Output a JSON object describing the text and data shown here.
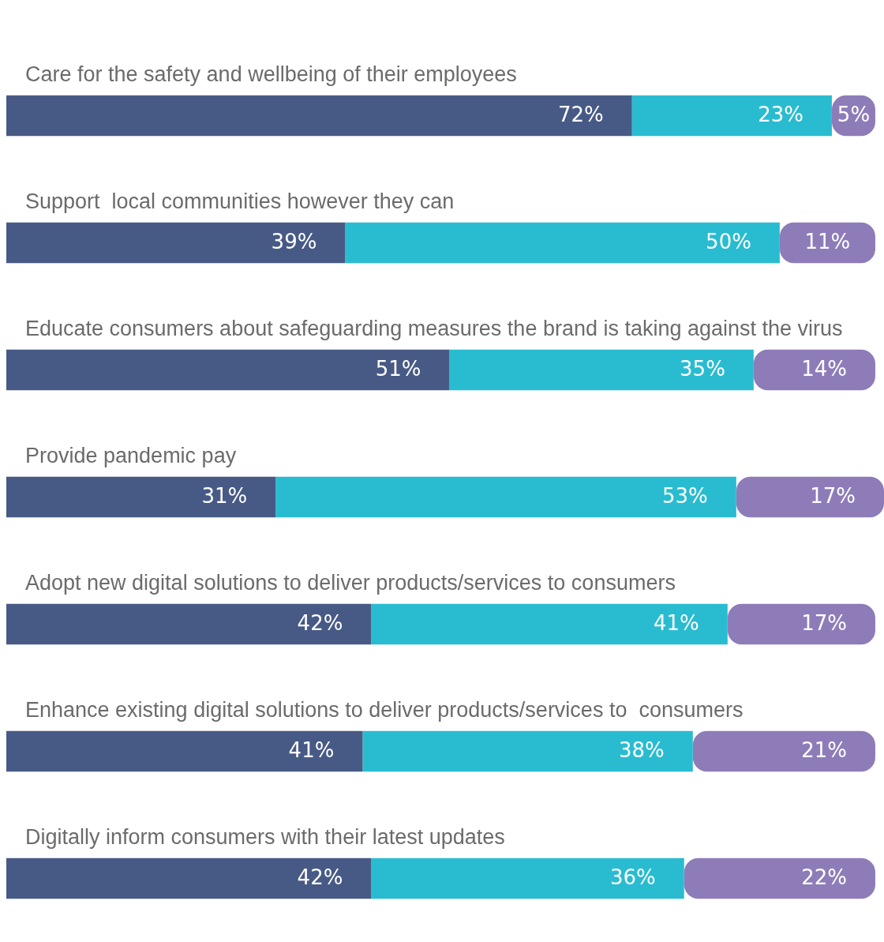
{
  "chart_data": {
    "type": "bar",
    "orientation": "horizontal",
    "stacked": true,
    "tick_labels": false,
    "categories": [
      "Care for the safety and wellbeing of their employees",
      "Support  local communities however they can",
      "Educate consumers about safeguarding measures the brand is taking against the virus",
      "Provide pandemic pay",
      "Adopt new digital solutions to deliver products/services to consumers",
      "Enhance existing digital solutions to deliver products/services to  consumers",
      "Digitally inform consumers with their latest updates"
    ],
    "series": [
      {
        "color": "#475a85",
        "values": [
          72,
          39,
          51,
          31,
          42,
          41,
          42
        ],
        "value_labels": [
          "72%",
          "39%",
          "51%",
          "31%",
          "42%",
          "41%",
          "42%"
        ]
      },
      {
        "color": "#29bcd1",
        "values": [
          23,
          50,
          35,
          53,
          41,
          38,
          36
        ],
        "value_labels": [
          "23%",
          "50%",
          "35%",
          "53%",
          "41%",
          "38%",
          "36%"
        ]
      },
      {
        "color": "#8e7cb9",
        "values": [
          5,
          11,
          14,
          17,
          17,
          21,
          22
        ],
        "value_labels": [
          "5%",
          "11%",
          "14%",
          "17%",
          "17%",
          "21%",
          "22%"
        ]
      }
    ]
  }
}
